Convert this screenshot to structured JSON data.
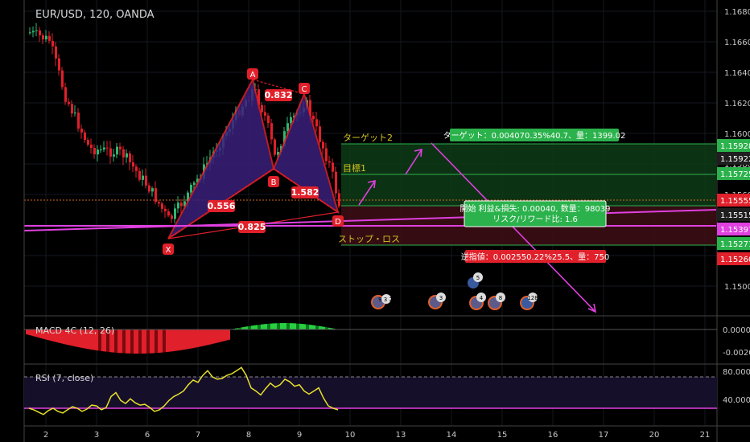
{
  "header": {
    "symbol_title": "EUR/USD, 120, OANDA"
  },
  "colors": {
    "bg": "#000000",
    "grid": "#1a1f28",
    "up": "#2fb673",
    "down": "#e0202a",
    "pattern_fill": "#3a1f7a",
    "pattern_stroke": "#e0202a",
    "magenta": "#e040e0",
    "green_label": "#2bb24c",
    "red_label": "#e0202a",
    "target_zone": "#0e3b17",
    "stop_zone": "#3b0d14",
    "orange_line": "#d26a1e",
    "rsi_line": "#e7e02c"
  },
  "price_axis": {
    "ticks": [
      "1.16800",
      "1.16600",
      "1.16400",
      "1.16200",
      "1.16000",
      "1.15800",
      "1.15600",
      "1.15400",
      "1.15200",
      "1.15000"
    ],
    "badges": [
      {
        "text": "1.15928",
        "color": "#2bb24c"
      },
      {
        "text": "1.15922",
        "color": "#1f1f1f"
      },
      {
        "text": "1.15725",
        "color": "#2bb24c"
      },
      {
        "text": "1.15555",
        "color": "#e0202a"
      },
      {
        "text": "1.15515",
        "color": "#1f1f1f"
      },
      {
        "text": "1.15397",
        "color": "#e040e0"
      },
      {
        "text": "1.15271",
        "color": "#2bb24c"
      },
      {
        "text": "1.15260",
        "color": "#e0202a"
      }
    ]
  },
  "time_axis": {
    "ticks": [
      "2",
      "3",
      "6",
      "7",
      "8",
      "9",
      "10",
      "13",
      "14",
      "15",
      "16",
      "17",
      "20",
      "21"
    ]
  },
  "pattern": {
    "points": {
      "X": "X",
      "A": "A",
      "B": "B",
      "C": "C",
      "D": "D"
    },
    "ratios": {
      "xb": "0.556",
      "ac": "0.832",
      "bd": "1.582",
      "xd": "0.825"
    }
  },
  "position": {
    "target2_label": "ターゲット2",
    "target1_label": "目標1",
    "stop_label": "ストップ・ロス",
    "target_box": "ターゲット：0.004070.35%40.7、量：1399.02",
    "info_line1": "開始 利益&損失: 0.00040, 数量：98039",
    "info_line2": "リスク/リワード比: 1.6",
    "stop_box": "逆指値：0.002550.22%25.5、量：750"
  },
  "events": [
    {
      "label": "9 3 2"
    },
    {
      "label": "3"
    },
    {
      "label": "5"
    },
    {
      "label": "4"
    },
    {
      "label": "8"
    },
    {
      "label": "128"
    }
  ],
  "macd": {
    "title": "MACD 4C (12, 26)",
    "ticks": [
      "0.0000",
      "-0.0020"
    ]
  },
  "rsi": {
    "title": "RSI (7, close)",
    "ticks": [
      "80.0000",
      "40.0000"
    ],
    "levels": {
      "upper": 70,
      "lower": 30
    }
  },
  "chart_data": {
    "type": "candlestick",
    "title": "EUR/USD, 120, OANDA",
    "ylim": [
      1.1485,
      1.169
    ],
    "pattern_points": [
      {
        "name": "X",
        "price": 1.1535
      },
      {
        "name": "A",
        "price": 1.1632
      },
      {
        "name": "B",
        "price": 1.1578
      },
      {
        "name": "C",
        "price": 1.1621
      },
      {
        "name": "D",
        "price": 1.155
      }
    ],
    "levels": {
      "target2": 1.15928,
      "target1": 1.15725,
      "entry": 1.15555,
      "stop": 1.15271
    },
    "rsi_values": [
      30,
      28,
      25,
      22,
      27,
      30,
      26,
      24,
      28,
      32,
      30,
      26,
      29,
      34,
      33,
      28,
      31,
      45,
      50,
      40,
      36,
      42,
      37,
      34,
      35,
      31,
      26,
      28,
      33,
      40,
      45,
      48,
      52,
      60,
      66,
      63,
      72,
      78,
      70,
      67,
      68,
      72,
      74,
      78,
      82,
      72,
      56,
      52,
      47,
      55,
      62,
      57,
      60,
      67,
      64,
      58,
      60,
      52,
      48,
      52,
      56,
      43,
      33,
      30,
      28
    ]
  }
}
